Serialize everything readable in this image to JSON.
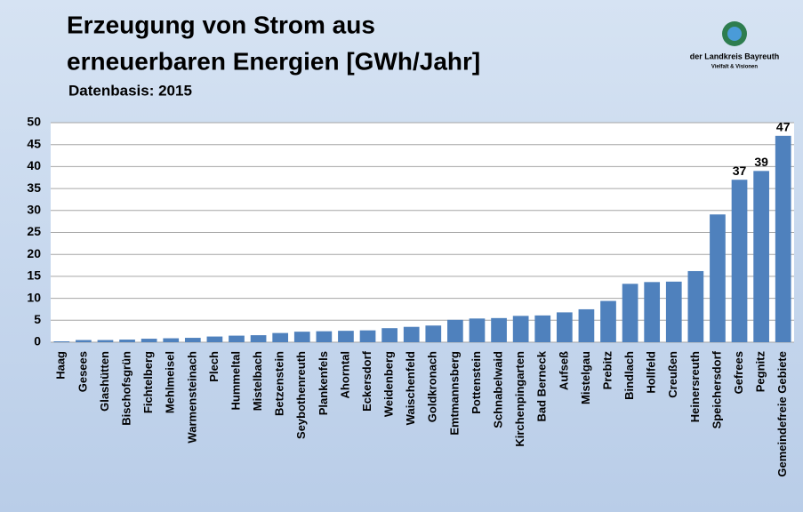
{
  "chart_data": {
    "type": "bar",
    "title": [
      "Erzeugung von Strom aus",
      "erneuerbaren Energien [GWh/Jahr]"
    ],
    "subtitle": "Datenbasis: 2015",
    "logo_text": [
      "der Landkreis Bayreuth",
      "Vielfalt & Visionen"
    ],
    "categories": [
      "Haag",
      "Gesees",
      "Glashütten",
      "Bischofsgrün",
      "Fichtelberg",
      "Mehlmeisel",
      "Warmensteinach",
      "Plech",
      "Hummeltal",
      "Mistelbach",
      "Betzenstein",
      "Seybothenreuth",
      "Plankenfels",
      "Ahorntal",
      "Eckersdorf",
      "Weidenberg",
      "Waischenfeld",
      "Goldkronach",
      "Emtmannsberg",
      "Pottenstein",
      "Schnabelwaid",
      "Kirchenpingarten",
      "Bad Berneck",
      "Aufseß",
      "Mistelgau",
      "Prebitz",
      "Bindlach",
      "Hollfeld",
      "Creußen",
      "Heinersreuth",
      "Speichersdorf",
      "Gefrees",
      "Pegnitz",
      "Gemeindefreie Gebiete"
    ],
    "values": [
      0.2,
      0.5,
      0.5,
      0.6,
      0.8,
      0.9,
      1.0,
      1.3,
      1.5,
      1.6,
      2.1,
      2.4,
      2.5,
      2.6,
      2.7,
      3.2,
      3.5,
      3.8,
      5.1,
      5.4,
      5.5,
      6.0,
      6.1,
      6.8,
      7.5,
      9.4,
      13.3,
      13.7,
      13.8,
      16.2,
      29.1,
      37,
      39,
      47
    ],
    "value_labels": [
      null,
      null,
      null,
      null,
      null,
      null,
      null,
      null,
      null,
      null,
      null,
      null,
      null,
      null,
      null,
      null,
      null,
      null,
      null,
      null,
      null,
      null,
      null,
      null,
      null,
      null,
      null,
      null,
      null,
      null,
      null,
      "37",
      "39",
      "47"
    ],
    "color": "#4f81bd",
    "ylim": [
      0,
      50
    ],
    "yticks": [
      0,
      5,
      10,
      15,
      20,
      25,
      30,
      35,
      40,
      45,
      50
    ],
    "grid": true
  }
}
